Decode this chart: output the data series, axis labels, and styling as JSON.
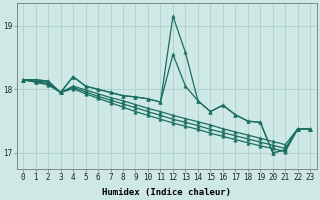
{
  "xlabel": "Humidex (Indice chaleur)",
  "xlim": [
    -0.5,
    23.5
  ],
  "ylim": [
    16.75,
    19.35
  ],
  "yticks": [
    17,
    18,
    19
  ],
  "xticks": [
    0,
    1,
    2,
    3,
    4,
    5,
    6,
    7,
    8,
    9,
    10,
    11,
    12,
    13,
    14,
    15,
    16,
    17,
    18,
    19,
    20,
    21,
    22,
    23
  ],
  "bg_color": "#cde8e5",
  "grid_color": "#aecfcc",
  "line_color": "#1a6e62",
  "main_line": [
    18.15,
    18.15,
    18.13,
    17.95,
    18.2,
    18.05,
    18.0,
    17.95,
    17.9,
    17.88,
    17.85,
    17.8,
    19.15,
    18.58,
    17.82,
    17.65,
    17.75,
    17.6,
    17.5,
    17.48,
    17.0,
    17.05,
    17.38,
    17.38
  ],
  "sec_line": [
    18.15,
    18.15,
    18.13,
    17.95,
    18.2,
    18.05,
    18.0,
    17.95,
    17.9,
    17.88,
    17.85,
    17.8,
    18.55,
    18.05,
    17.82,
    17.65,
    17.75,
    17.6,
    17.5,
    17.48,
    17.0,
    17.05,
    17.38,
    17.38
  ],
  "trend1": [
    18.15,
    18.13,
    18.11,
    17.95,
    18.05,
    17.99,
    17.93,
    17.87,
    17.82,
    17.76,
    17.7,
    17.65,
    17.59,
    17.54,
    17.49,
    17.44,
    17.38,
    17.33,
    17.28,
    17.23,
    17.18,
    17.13,
    17.38,
    17.38
  ],
  "trend2": [
    18.15,
    18.12,
    18.09,
    17.95,
    18.03,
    17.96,
    17.89,
    17.83,
    17.77,
    17.71,
    17.65,
    17.59,
    17.53,
    17.48,
    17.43,
    17.37,
    17.32,
    17.27,
    17.22,
    17.17,
    17.12,
    17.07,
    17.38,
    17.38
  ],
  "trend3": [
    18.15,
    18.11,
    18.07,
    17.95,
    18.01,
    17.93,
    17.86,
    17.79,
    17.72,
    17.65,
    17.59,
    17.53,
    17.47,
    17.42,
    17.37,
    17.31,
    17.26,
    17.21,
    17.16,
    17.11,
    17.07,
    17.02,
    17.38,
    17.38
  ],
  "markersize": 2.5,
  "linewidth": 0.9,
  "tick_fontsize": 5.5,
  "axis_fontsize": 6.5
}
